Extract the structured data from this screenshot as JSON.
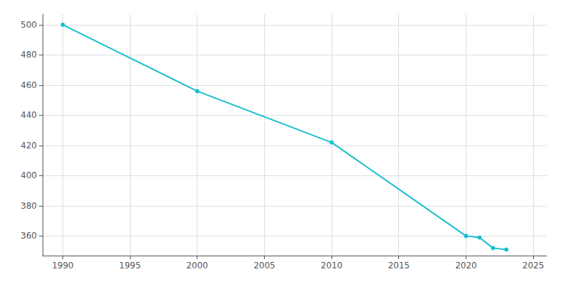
{
  "chart_data": {
    "type": "line",
    "x": [
      1990,
      2000,
      2010,
      2020,
      2021,
      2022,
      2023
    ],
    "values": [
      500,
      456,
      422,
      360,
      359,
      352,
      351
    ],
    "color": "#17becf",
    "marker": "circle",
    "xlim": [
      1988.5,
      2026
    ],
    "ylim": [
      347,
      507
    ],
    "xticks": [
      1990,
      1995,
      2000,
      2005,
      2010,
      2015,
      2020,
      2025
    ],
    "yticks": [
      360,
      380,
      400,
      420,
      440,
      460,
      480,
      500
    ],
    "grid": true
  }
}
